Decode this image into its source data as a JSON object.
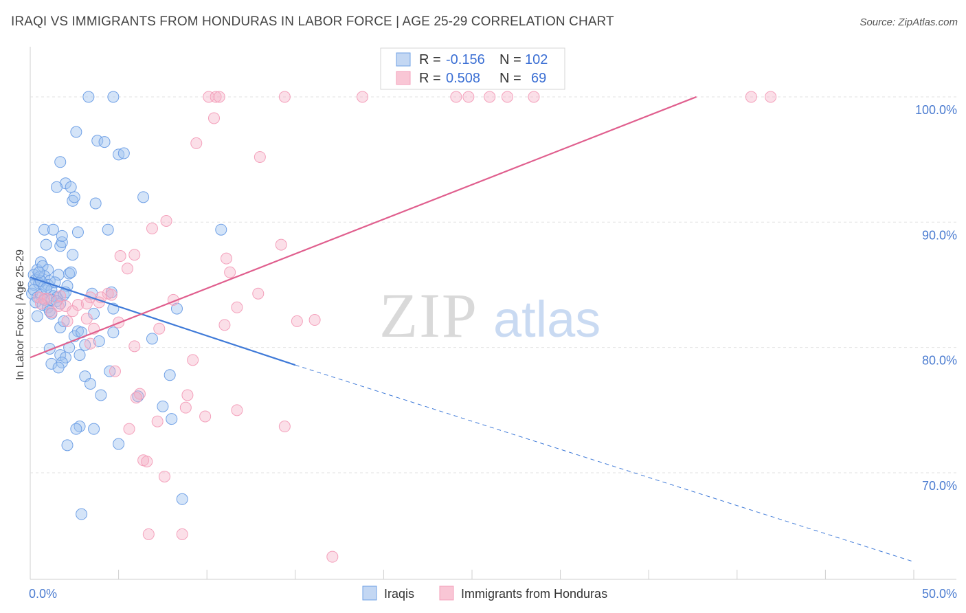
{
  "header": {
    "title": "IRAQI VS IMMIGRANTS FROM HONDURAS IN LABOR FORCE | AGE 25-29 CORRELATION CHART",
    "source": "Source: ZipAtlas.com"
  },
  "watermark": {
    "zip": "ZIP",
    "atlas": "atlas"
  },
  "legend": {
    "rows": [
      {
        "r_label": "R =",
        "r_value": "-0.156",
        "n_label": "N =",
        "n_value": "102"
      },
      {
        "r_label": "R =",
        "r_value": "0.508",
        "n_label": "N =",
        "n_value": "69"
      }
    ]
  },
  "chart_data": {
    "type": "scatter",
    "ylabel": "In Labor Force | Age 25-29",
    "xlim": [
      0,
      50
    ],
    "ylim": [
      61.5,
      104
    ],
    "x_tick_labels": [
      "0.0%",
      "50.0%"
    ],
    "y_ticks": [
      {
        "value": 100,
        "label": "100.0%"
      },
      {
        "value": 90,
        "label": "90.0%"
      },
      {
        "value": 80,
        "label": "80.0%"
      },
      {
        "value": 70,
        "label": "70.0%"
      }
    ],
    "grid": "horizontal dashed",
    "series": [
      {
        "name": "Iraqis",
        "color": "#6fa0e6",
        "trend": {
          "x0": 0,
          "y0": 85.6,
          "x1": 15,
          "y1": 78.6,
          "dash_to_x": 50,
          "dash_to_y": 62.9,
          "color": "#3f7ad8"
        },
        "points": [
          [
            3.3,
            100
          ],
          [
            4.7,
            100
          ],
          [
            2.6,
            97.2
          ],
          [
            3.8,
            96.5
          ],
          [
            4.2,
            96.4
          ],
          [
            5.0,
            95.4
          ],
          [
            5.3,
            95.5
          ],
          [
            1.7,
            94.8
          ],
          [
            2.0,
            93.1
          ],
          [
            1.5,
            92.8
          ],
          [
            2.3,
            92.8
          ],
          [
            2.4,
            91.7
          ],
          [
            2.5,
            92.0
          ],
          [
            3.7,
            91.5
          ],
          [
            6.4,
            92.0
          ],
          [
            0.8,
            89.4
          ],
          [
            1.3,
            89.4
          ],
          [
            2.7,
            89.2
          ],
          [
            4.4,
            89.4
          ],
          [
            10.8,
            89.4
          ],
          [
            0.9,
            88.2
          ],
          [
            1.7,
            88.1
          ],
          [
            1.8,
            88.4
          ],
          [
            1.8,
            88.9
          ],
          [
            2.4,
            87.4
          ],
          [
            0.4,
            86.2
          ],
          [
            0.6,
            86.8
          ],
          [
            0.7,
            86.5
          ],
          [
            1.0,
            86.2
          ],
          [
            0.2,
            85.8
          ],
          [
            0.3,
            85.4
          ],
          [
            0.5,
            85.6
          ],
          [
            0.8,
            85.7
          ],
          [
            1.1,
            85.3
          ],
          [
            1.6,
            85.8
          ],
          [
            2.2,
            85.9
          ],
          [
            2.3,
            86.0
          ],
          [
            0.2,
            85.0
          ],
          [
            0.5,
            85.1
          ],
          [
            0.8,
            84.9
          ],
          [
            1.0,
            85.0
          ],
          [
            1.2,
            84.6
          ],
          [
            2.1,
            84.9
          ],
          [
            0.1,
            84.3
          ],
          [
            0.2,
            84.6
          ],
          [
            0.4,
            84.0
          ],
          [
            0.6,
            84.2
          ],
          [
            0.8,
            83.8
          ],
          [
            1.3,
            84.1
          ],
          [
            1.5,
            84.0
          ],
          [
            1.9,
            84.2
          ],
          [
            3.5,
            84.3
          ],
          [
            4.6,
            84.4
          ],
          [
            0.3,
            83.6
          ],
          [
            0.7,
            83.4
          ],
          [
            1.0,
            83.2
          ],
          [
            1.2,
            83.8
          ],
          [
            1.7,
            83.5
          ],
          [
            1.1,
            82.9
          ],
          [
            1.2,
            82.7
          ],
          [
            3.6,
            82.7
          ],
          [
            4.7,
            83.1
          ],
          [
            8.3,
            83.1
          ],
          [
            1.7,
            81.6
          ],
          [
            2.7,
            81.3
          ],
          [
            2.5,
            80.9
          ],
          [
            4.7,
            81.2
          ],
          [
            6.9,
            80.7
          ],
          [
            3.1,
            80.2
          ],
          [
            1.1,
            79.9
          ],
          [
            2.2,
            80.0
          ],
          [
            1.7,
            79.4
          ],
          [
            2.0,
            79.2
          ],
          [
            2.8,
            79.4
          ],
          [
            1.2,
            78.7
          ],
          [
            1.8,
            78.8
          ],
          [
            4.5,
            78.1
          ],
          [
            3.1,
            77.7
          ],
          [
            7.9,
            77.8
          ],
          [
            3.4,
            77.1
          ],
          [
            4.0,
            76.2
          ],
          [
            6.1,
            76.1
          ],
          [
            7.5,
            75.3
          ],
          [
            8.0,
            74.3
          ],
          [
            2.8,
            73.7
          ],
          [
            2.6,
            73.5
          ],
          [
            3.6,
            73.5
          ],
          [
            2.1,
            72.2
          ],
          [
            5.0,
            72.3
          ],
          [
            8.6,
            67.9
          ],
          [
            2.9,
            66.7
          ],
          [
            0.6,
            85.3
          ],
          [
            1.4,
            85.2
          ],
          [
            0.9,
            84.7
          ],
          [
            1.5,
            83.7
          ],
          [
            2.9,
            81.2
          ],
          [
            0.4,
            82.5
          ],
          [
            1.9,
            82.1
          ],
          [
            3.9,
            80.5
          ],
          [
            1.6,
            78.4
          ],
          [
            2.0,
            84.4
          ],
          [
            0.5,
            86.0
          ]
        ]
      },
      {
        "name": "Immigrants from Honduras",
        "color": "#f4a0bb",
        "trend": {
          "x0": 0,
          "y0": 79.2,
          "x1": 37.7,
          "y1": 100,
          "color": "#e05f8e"
        },
        "points": [
          [
            10.1,
            100
          ],
          [
            10.5,
            100
          ],
          [
            10.7,
            100
          ],
          [
            14.4,
            100
          ],
          [
            18.8,
            100
          ],
          [
            24.1,
            100
          ],
          [
            24.8,
            100
          ],
          [
            26.0,
            100
          ],
          [
            27.0,
            100
          ],
          [
            28.5,
            100
          ],
          [
            40.8,
            100
          ],
          [
            41.9,
            100
          ],
          [
            10.4,
            98.3
          ],
          [
            9.4,
            96.3
          ],
          [
            13.0,
            95.2
          ],
          [
            7.7,
            90.1
          ],
          [
            6.9,
            89.5
          ],
          [
            14.2,
            88.2
          ],
          [
            5.1,
            87.3
          ],
          [
            5.9,
            87.4
          ],
          [
            11.1,
            87.1
          ],
          [
            5.5,
            86.3
          ],
          [
            11.3,
            86.0
          ],
          [
            4.4,
            84.3
          ],
          [
            4.0,
            84.0
          ],
          [
            4.6,
            84.2
          ],
          [
            3.4,
            84.0
          ],
          [
            0.5,
            84.0
          ],
          [
            0.8,
            83.9
          ],
          [
            1.0,
            83.9
          ],
          [
            12.9,
            84.3
          ],
          [
            8.1,
            83.8
          ],
          [
            3.9,
            83.6
          ],
          [
            1.6,
            83.3
          ],
          [
            2.0,
            83.3
          ],
          [
            2.7,
            83.4
          ],
          [
            3.2,
            83.5
          ],
          [
            11.7,
            83.2
          ],
          [
            0.6,
            83.5
          ],
          [
            1.2,
            82.8
          ],
          [
            2.4,
            82.9
          ],
          [
            2.1,
            82.1
          ],
          [
            3.2,
            82.3
          ],
          [
            5.0,
            82.0
          ],
          [
            15.1,
            82.1
          ],
          [
            16.1,
            82.2
          ],
          [
            11.0,
            81.8
          ],
          [
            3.6,
            81.5
          ],
          [
            7.3,
            81.5
          ],
          [
            3.4,
            80.3
          ],
          [
            5.9,
            80.1
          ],
          [
            9.2,
            79.0
          ],
          [
            4.8,
            78.1
          ],
          [
            6.2,
            76.3
          ],
          [
            8.9,
            76.2
          ],
          [
            6.0,
            76.0
          ],
          [
            8.8,
            75.2
          ],
          [
            11.7,
            75.0
          ],
          [
            9.9,
            74.5
          ],
          [
            7.2,
            74.1
          ],
          [
            14.4,
            73.7
          ],
          [
            5.6,
            73.5
          ],
          [
            6.4,
            71.0
          ],
          [
            6.6,
            70.9
          ],
          [
            7.6,
            69.7
          ],
          [
            6.7,
            65.1
          ],
          [
            8.6,
            65.1
          ],
          [
            17.1,
            63.3
          ],
          [
            1.7,
            84.1
          ]
        ]
      }
    ]
  }
}
